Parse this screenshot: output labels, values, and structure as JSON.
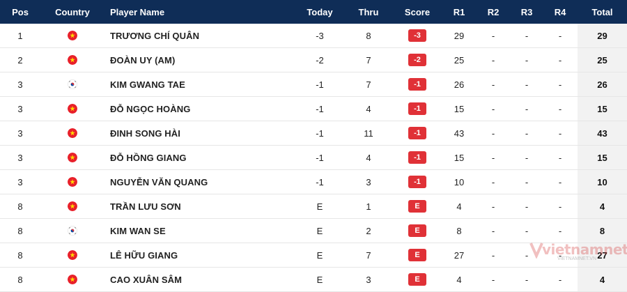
{
  "colors": {
    "header_bg": "#0f2d57",
    "score_badge": "#e03137",
    "total_bg": "#f2f2f2"
  },
  "header": {
    "pos": "Pos",
    "country": "Country",
    "player": "Player Name",
    "today": "Today",
    "thru": "Thru",
    "score": "Score",
    "r1": "R1",
    "r2": "R2",
    "r3": "R3",
    "r4": "R4",
    "total": "Total"
  },
  "rows": [
    {
      "pos": "1",
      "flag": "vietnam-flag-icon",
      "name": "TRƯƠNG CHÍ QUÂN",
      "today": "-3",
      "thru": "8",
      "score": "-3",
      "r1": "29",
      "r2": "-",
      "r3": "-",
      "r4": "-",
      "total": "29"
    },
    {
      "pos": "2",
      "flag": "vietnam-flag-icon",
      "name": "ĐOÀN UY (AM)",
      "today": "-2",
      "thru": "7",
      "score": "-2",
      "r1": "25",
      "r2": "-",
      "r3": "-",
      "r4": "-",
      "total": "25"
    },
    {
      "pos": "3",
      "flag": "korea-flag-icon",
      "name": "KIM GWANG TAE",
      "today": "-1",
      "thru": "7",
      "score": "-1",
      "r1": "26",
      "r2": "-",
      "r3": "-",
      "r4": "-",
      "total": "26"
    },
    {
      "pos": "3",
      "flag": "vietnam-flag-icon",
      "name": "ĐỖ NGỌC HOÀNG",
      "today": "-1",
      "thru": "4",
      "score": "-1",
      "r1": "15",
      "r2": "-",
      "r3": "-",
      "r4": "-",
      "total": "15"
    },
    {
      "pos": "3",
      "flag": "vietnam-flag-icon",
      "name": "ĐINH SONG HÀI",
      "today": "-1",
      "thru": "11",
      "score": "-1",
      "r1": "43",
      "r2": "-",
      "r3": "-",
      "r4": "-",
      "total": "43"
    },
    {
      "pos": "3",
      "flag": "vietnam-flag-icon",
      "name": "ĐỖ HỒNG GIANG",
      "today": "-1",
      "thru": "4",
      "score": "-1",
      "r1": "15",
      "r2": "-",
      "r3": "-",
      "r4": "-",
      "total": "15"
    },
    {
      "pos": "3",
      "flag": "vietnam-flag-icon",
      "name": "NGUYỄN VĂN QUANG",
      "today": "-1",
      "thru": "3",
      "score": "-1",
      "r1": "10",
      "r2": "-",
      "r3": "-",
      "r4": "-",
      "total": "10"
    },
    {
      "pos": "8",
      "flag": "vietnam-flag-icon",
      "name": "TRẦN LƯU SƠN",
      "today": "E",
      "thru": "1",
      "score": "E",
      "r1": "4",
      "r2": "-",
      "r3": "-",
      "r4": "-",
      "total": "4"
    },
    {
      "pos": "8",
      "flag": "korea-flag-icon",
      "name": "KIM WAN SE",
      "today": "E",
      "thru": "2",
      "score": "E",
      "r1": "8",
      "r2": "-",
      "r3": "-",
      "r4": "-",
      "total": "8"
    },
    {
      "pos": "8",
      "flag": "vietnam-flag-icon",
      "name": "LÊ HỮU GIANG",
      "today": "E",
      "thru": "7",
      "score": "E",
      "r1": "27",
      "r2": "-",
      "r3": "-",
      "r4": "-",
      "total": "27"
    },
    {
      "pos": "8",
      "flag": "vietnam-flag-icon",
      "name": "CAO XUÂN SÂM",
      "today": "E",
      "thru": "3",
      "score": "E",
      "r1": "4",
      "r2": "-",
      "r3": "-",
      "r4": "-",
      "total": "4"
    }
  ],
  "watermark": {
    "brand": "vietnamnet",
    "sub": "VIETNAMNET.VN"
  }
}
